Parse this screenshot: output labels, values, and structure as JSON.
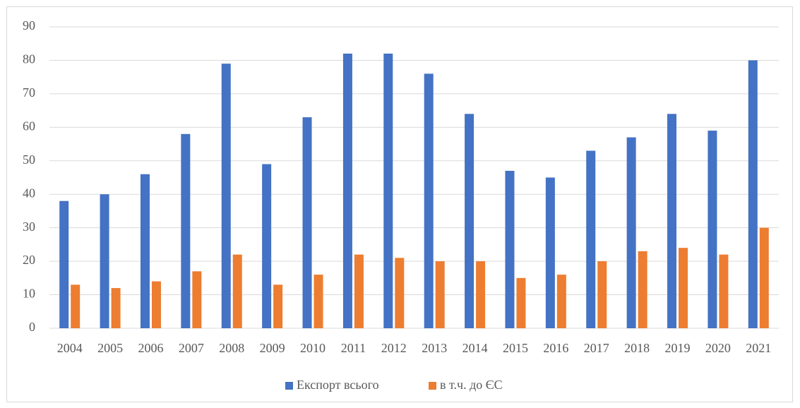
{
  "chart_data": {
    "type": "bar",
    "categories": [
      "2004",
      "2005",
      "2006",
      "2007",
      "2008",
      "2009",
      "2010",
      "2011",
      "2012",
      "2013",
      "2014",
      "2015",
      "2016",
      "2017",
      "2018",
      "2019",
      "2020",
      "2021"
    ],
    "series": [
      {
        "name": "Експорт всього",
        "color": "#4472c4",
        "values": [
          38,
          40,
          46,
          58,
          79,
          49,
          63,
          82,
          82,
          76,
          64,
          47,
          45,
          53,
          57,
          64,
          59,
          80
        ]
      },
      {
        "name": "в т.ч. до ЄС",
        "color": "#ed7d31",
        "values": [
          13,
          12,
          14,
          17,
          22,
          13,
          16,
          22,
          21,
          20,
          20,
          15,
          16,
          20,
          23,
          24,
          22,
          30
        ]
      }
    ],
    "ylim": [
      0,
      90
    ],
    "yticks": [
      0,
      10,
      20,
      30,
      40,
      50,
      60,
      70,
      80,
      90
    ],
    "grid": true,
    "legend": "bottom"
  }
}
